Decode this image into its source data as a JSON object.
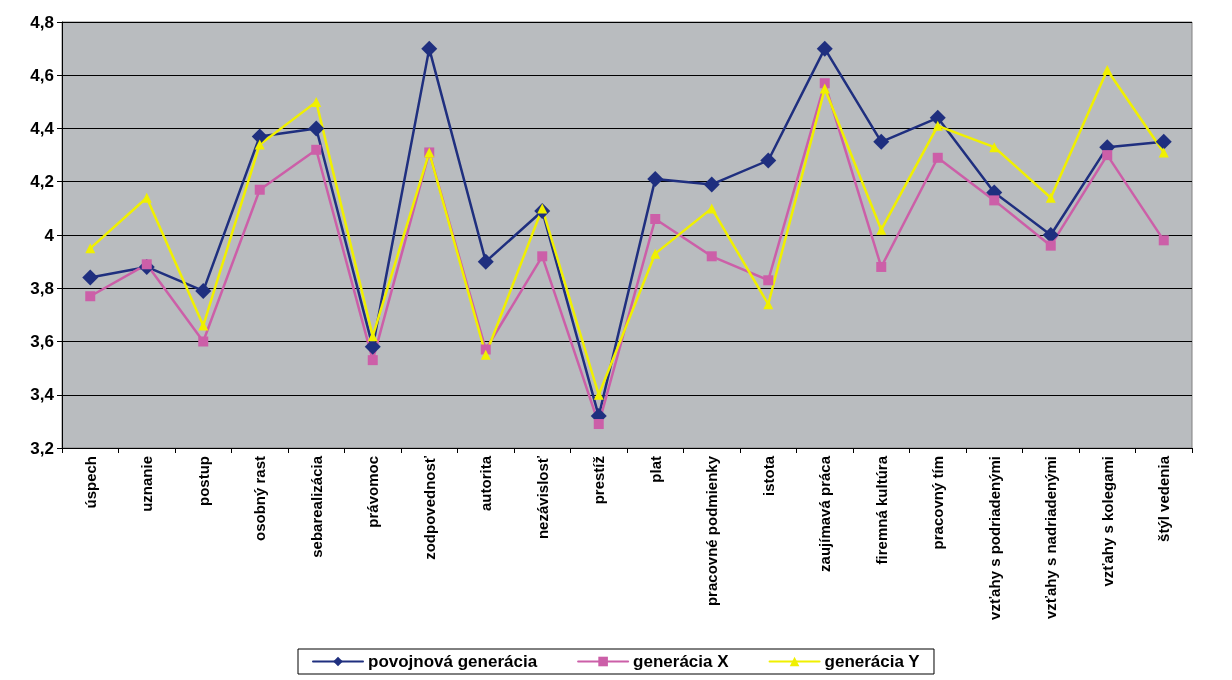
{
  "chart_data": {
    "type": "line",
    "categories": [
      "úspech",
      "uznanie",
      "postup",
      "osobný rast",
      "sebarealizácia",
      "právomoc",
      "zodpovednosť",
      "autorita",
      "nezávislosť",
      "prestíž",
      "plat",
      "pracovné podmienky",
      "istota",
      "zaujímavá práca",
      "firemná kultúra",
      "pracovný tím",
      "vzťahy s podriadenými",
      "vzťahy s nadriadenými",
      "vzťahy s kolegami",
      "štýl vedenia"
    ],
    "series": [
      {
        "name": "povojnová generácia",
        "color": "#1f2f7f",
        "marker": "diamond",
        "values": [
          3.84,
          3.88,
          3.79,
          4.37,
          4.4,
          3.58,
          4.7,
          3.9,
          4.09,
          3.32,
          4.21,
          4.19,
          4.28,
          4.7,
          4.35,
          4.44,
          4.16,
          4.0,
          4.33,
          4.35
        ]
      },
      {
        "name": "generácia X",
        "color": "#cc5fa8",
        "marker": "square",
        "values": [
          3.77,
          3.89,
          3.6,
          4.17,
          4.32,
          3.53,
          4.31,
          3.57,
          3.92,
          3.29,
          4.06,
          3.92,
          3.83,
          4.57,
          3.88,
          4.29,
          4.13,
          3.96,
          4.3,
          3.98
        ]
      },
      {
        "name": "generácia Y",
        "color": "#f0f000",
        "marker": "triangle",
        "values": [
          3.95,
          4.14,
          3.66,
          4.34,
          4.5,
          3.62,
          4.31,
          3.55,
          4.1,
          3.4,
          3.93,
          4.1,
          3.74,
          4.55,
          4.02,
          4.41,
          4.33,
          4.14,
          4.62,
          4.31
        ]
      }
    ],
    "ylim": [
      3.2,
      4.8
    ],
    "yticks": [
      {
        "value": 3.2,
        "label": "3,2"
      },
      {
        "value": 3.4,
        "label": "3,4"
      },
      {
        "value": 3.6,
        "label": "3,6"
      },
      {
        "value": 3.8,
        "label": "3,8"
      },
      {
        "value": 4,
        "label": "4"
      },
      {
        "value": 4.2,
        "label": "4,2"
      },
      {
        "value": 4.4,
        "label": "4,4"
      },
      {
        "value": 4.6,
        "label": "4,6"
      },
      {
        "value": 4.8,
        "label": "4,8"
      }
    ],
    "grid": "y",
    "legend": "bottom",
    "line_style": "solid"
  }
}
